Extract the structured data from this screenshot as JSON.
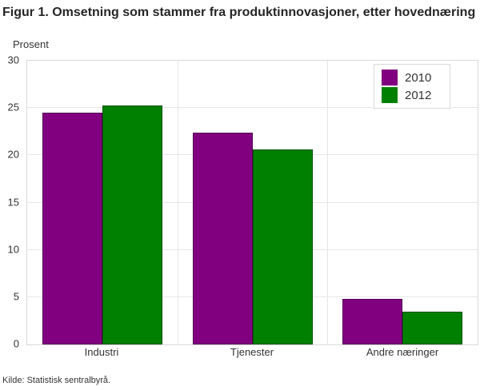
{
  "title": "Figur 1. Omsetning som stammer fra produktinnovasjoner, etter hovednæring",
  "y_unit_label": "Prosent",
  "source": "Kilde: Statistisk sentralbyrå.",
  "colors": {
    "series_2010": "#800080",
    "series_2012": "#008000",
    "grid": "#e6e6e6",
    "axis_border": "#d9d9d9",
    "text": "#333333"
  },
  "chart_data": {
    "type": "bar",
    "title": "Figur 1. Omsetning som stammer fra produktinnovasjoner, etter hovednæring",
    "xlabel": "",
    "ylabel": "Prosent",
    "categories": [
      "Industri",
      "Tjenester",
      "Andre næringer"
    ],
    "series": [
      {
        "name": "2010",
        "color": "#800080",
        "values": [
          24.5,
          22.4,
          4.8
        ]
      },
      {
        "name": "2012",
        "color": "#008000",
        "values": [
          25.3,
          20.6,
          3.5
        ]
      }
    ],
    "ylim": [
      0,
      30
    ],
    "yticks": [
      0,
      5,
      10,
      15,
      20,
      25,
      30
    ],
    "grid": true,
    "legend_position": "top-right"
  }
}
